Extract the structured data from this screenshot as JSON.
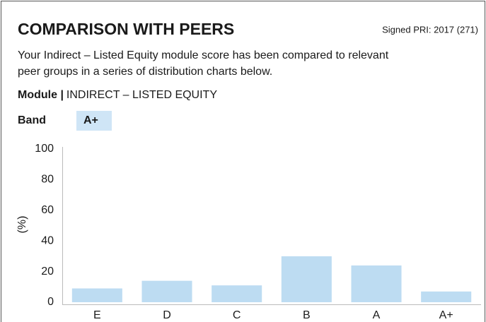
{
  "header": {
    "title": "COMPARISON WITH PEERS",
    "signed": "Signed PRI: 2017 (271)"
  },
  "description": [
    "Your Indirect – Listed Equity module score has been compared to relevant",
    "peer groups in a series of distribution charts below."
  ],
  "module": {
    "label": "Module |",
    "value": "INDIRECT – LISTED EQUITY"
  },
  "band": {
    "label": "Band",
    "value": "A+"
  },
  "chart_data": {
    "type": "bar",
    "y_label": "(%)",
    "categories": [
      "E",
      "D",
      "C",
      "B",
      "A",
      "A+"
    ],
    "values": [
      9,
      14,
      11,
      30,
      24,
      7
    ],
    "color": "#bddcf2",
    "ylim": [
      0,
      100
    ],
    "yticks": [
      0,
      20,
      40,
      60,
      80,
      100
    ],
    "grid": false
  }
}
